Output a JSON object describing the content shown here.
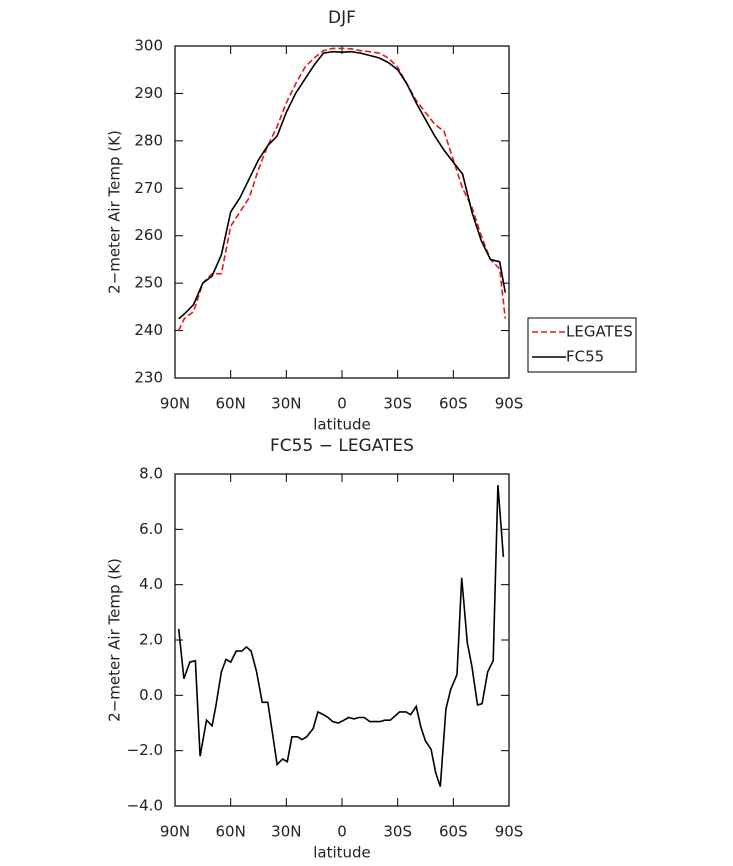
{
  "chart_data": [
    {
      "type": "line",
      "title": "DJF",
      "xlabel": "latitude",
      "ylabel": "2−meter Air Temp (K)",
      "x": [
        88,
        85,
        80,
        75,
        70,
        65,
        60,
        55,
        50,
        45,
        40,
        35,
        30,
        25,
        20,
        15,
        10,
        5,
        0,
        -5,
        -10,
        -15,
        -20,
        -25,
        -30,
        -35,
        -40,
        -45,
        -50,
        -55,
        -60,
        -65,
        -70,
        -75,
        -80,
        -85,
        -88
      ],
      "series": [
        {
          "name": "LEGATES",
          "color": "#e8141c",
          "dash": true,
          "values": [
            240,
            242.5,
            244,
            250,
            252,
            252,
            262,
            265,
            268,
            274,
            279,
            283,
            288,
            292,
            295.5,
            297.5,
            299,
            299.5,
            299.5,
            299.4,
            299,
            298.8,
            298.5,
            297.5,
            295.5,
            292,
            288.5,
            286,
            283.5,
            282,
            276,
            270,
            266,
            260,
            255,
            253,
            242.5
          ]
        },
        {
          "name": "FC55",
          "color": "#000000",
          "dash": false,
          "values": [
            242.5,
            243.5,
            245.5,
            250,
            251.5,
            256,
            265,
            268,
            272,
            276,
            279,
            281,
            286,
            290,
            293,
            296,
            298.5,
            298.8,
            298.7,
            298.8,
            298.5,
            298,
            297.5,
            296.5,
            295,
            292,
            288,
            284.5,
            281,
            278,
            275.5,
            273,
            265,
            259,
            255,
            254.5,
            248
          ]
        }
      ],
      "xlim": [
        90,
        -90
      ],
      "xticks": [
        {
          "value": 90,
          "label": "90N"
        },
        {
          "value": 60,
          "label": "60N"
        },
        {
          "value": 30,
          "label": "30N"
        },
        0,
        {
          "value": -30,
          "label": "30S"
        },
        {
          "value": -60,
          "label": "60S"
        },
        {
          "value": -90,
          "label": "90S"
        }
      ],
      "ylim": [
        230,
        300
      ],
      "yticks": [
        230,
        240,
        250,
        260,
        270,
        280,
        290,
        300
      ],
      "legend": "outside-right"
    },
    {
      "type": "line",
      "title": "FC55 − LEGATES",
      "xlabel": "latitude",
      "ylabel": "2−meter Air Temp (K)",
      "x": [
        88,
        85.2,
        82,
        79,
        76.5,
        73,
        70,
        68,
        65,
        62.5,
        60,
        57,
        54,
        51.5,
        49,
        46,
        43,
        40,
        37.5,
        35,
        32,
        29.5,
        27,
        24,
        21.5,
        19,
        15.5,
        13,
        10,
        7.5,
        5,
        2,
        -1,
        -3.5,
        -6.5,
        -9,
        -12,
        -15,
        -18,
        -20.5,
        -23,
        -26,
        -28.5,
        -31,
        -34.5,
        -37,
        -40,
        -42.5,
        -45,
        -48,
        -50.5,
        -53,
        -56,
        -58.5,
        -62,
        -64.5,
        -67.5,
        -70,
        -73,
        -75.5,
        -78.5,
        -81.5,
        -84,
        -87
      ],
      "series": [
        {
          "name": "FC55 − LEGATES",
          "color": "#000000",
          "dash": false,
          "values": [
            2.4,
            0.6,
            1.2,
            1.25,
            -2.2,
            -0.9,
            -1.1,
            -0.4,
            0.85,
            1.3,
            1.2,
            1.6,
            1.6,
            1.75,
            1.6,
            0.85,
            -0.25,
            -0.25,
            -1.35,
            -2.5,
            -2.3,
            -2.4,
            -1.5,
            -1.5,
            -1.6,
            -1.5,
            -1.2,
            -0.6,
            -0.7,
            -0.8,
            -0.95,
            -1.0,
            -0.9,
            -0.8,
            -0.85,
            -0.8,
            -0.8,
            -0.95,
            -0.95,
            -0.95,
            -0.9,
            -0.9,
            -0.75,
            -0.6,
            -0.6,
            -0.7,
            -0.4,
            -1.15,
            -1.65,
            -1.95,
            -2.8,
            -3.3,
            -0.5,
            0.2,
            0.75,
            4.25,
            1.9,
            1.05,
            -0.35,
            -0.3,
            0.85,
            1.25,
            7.6,
            5.0
          ]
        }
      ],
      "xlim": [
        90,
        -90
      ],
      "xticks": [
        {
          "value": 90,
          "label": "90N"
        },
        {
          "value": 60,
          "label": "60N"
        },
        {
          "value": 30,
          "label": "30N"
        },
        0,
        {
          "value": -30,
          "label": "30S"
        },
        {
          "value": -60,
          "label": "60S"
        },
        {
          "value": -90,
          "label": "90S"
        }
      ],
      "ylim": [
        -4,
        8
      ],
      "yticks": [
        {
          "value": -4,
          "label": "−4.0"
        },
        {
          "value": -2,
          "label": "−2.0"
        },
        {
          "value": 0,
          "label": "0.0"
        },
        {
          "value": 2,
          "label": "2.0"
        },
        {
          "value": 4,
          "label": "4.0"
        },
        {
          "value": 6,
          "label": "6.0"
        },
        {
          "value": 8,
          "label": "8.0"
        }
      ]
    }
  ]
}
